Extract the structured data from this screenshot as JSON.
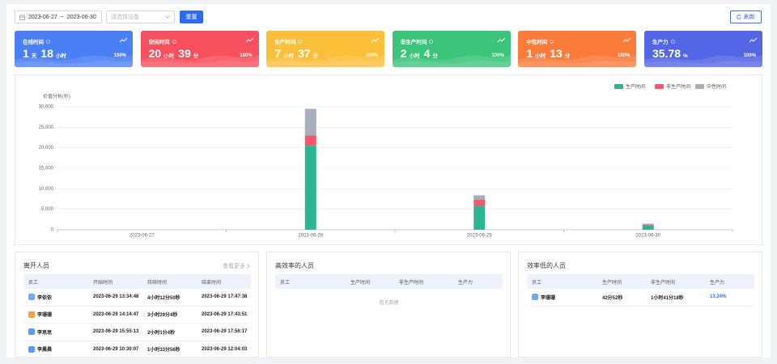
{
  "toolbar": {
    "date_start": "2023-06-27",
    "date_sep": "~",
    "date_end": "2023-06-30",
    "device_placeholder": "请选择设备",
    "reset": "重置",
    "refresh": "刷新"
  },
  "cards": [
    {
      "title": "在线时间",
      "color": "#4b7ff6",
      "parts": [
        {
          "value": 1,
          "unit": "天"
        },
        {
          "value": 18,
          "unit": "小时"
        }
      ],
      "percent": "100%"
    },
    {
      "title": "空闲时间",
      "color": "#f6505e",
      "parts": [
        {
          "value": 20,
          "unit": "小时"
        },
        {
          "value": 39,
          "unit": "分"
        }
      ],
      "percent": "100%"
    },
    {
      "title": "生产时间",
      "color": "#fcbf3a",
      "parts": [
        {
          "value": 7,
          "unit": "小时"
        },
        {
          "value": 37,
          "unit": "分"
        }
      ],
      "percent": "100%"
    },
    {
      "title": "非生产时间",
      "color": "#3cc47a",
      "parts": [
        {
          "value": 2,
          "unit": "小时"
        },
        {
          "value": 4,
          "unit": "分"
        }
      ],
      "percent": "100%"
    },
    {
      "title": "中性时间",
      "color": "#fb7b3b",
      "parts": [
        {
          "value": 1,
          "unit": "小时"
        },
        {
          "value": 13,
          "unit": "分"
        }
      ],
      "percent": "100%"
    },
    {
      "title": "生产力",
      "color": "#5466e6",
      "parts": [
        {
          "value": 35.78,
          "unit": "%"
        }
      ],
      "percent": "100%"
    }
  ],
  "chart_data": {
    "type": "bar",
    "stacked": true,
    "y_label": "价值分析(秒)",
    "categories": [
      "2023-06-27",
      "2023-06-28",
      "2023-06-29",
      "2023-06-30"
    ],
    "series": [
      {
        "name": "生产时间",
        "color": "#2bb591",
        "values": [
          0,
          20500,
          5800,
          1000
        ]
      },
      {
        "name": "非生产时间",
        "color": "#f25a6c",
        "values": [
          0,
          2500,
          1500,
          200
        ]
      },
      {
        "name": "中性时间",
        "color": "#a7afbd",
        "values": [
          0,
          6500,
          1100,
          300
        ]
      }
    ],
    "ylim": [
      0,
      30000
    ],
    "yticks": [
      0,
      {
        "value": 5000,
        "label": "5,000"
      },
      {
        "value": 10000,
        "label": "10,000"
      },
      {
        "value": 15000,
        "label": "15,000"
      },
      {
        "value": 20000,
        "label": "20,000"
      },
      {
        "value": 25000,
        "label": "25,000"
      },
      {
        "value": 30000,
        "label": "30,000"
      }
    ],
    "grid": true,
    "legend": "top-right"
  },
  "leave_panel": {
    "title": "离开人员",
    "more": "查看更多",
    "columns": [
      "员工",
      "开始时间",
      "持续时间",
      "结束时间"
    ],
    "rows": [
      [
        "李依依",
        "2023-06-29 13:34:48",
        "4小时12分50秒",
        "2023-06-29 17:47:38"
      ],
      [
        "李珊珊",
        "2023-06-29 14:14:47",
        "3小时29分4秒",
        "2023-06-29 17:43:51"
      ],
      [
        "李思思",
        "2023-06-29 15:55:13",
        "2小时1分4秒",
        "2023-06-29 17:56:17"
      ],
      [
        "李晨晨",
        "2023-06-29 10:30:07",
        "1小时33分56秒",
        "2023-06-29 12:04:03"
      ]
    ]
  },
  "high_panel": {
    "title": "高效率的人员",
    "columns": [
      "员工",
      "生产时间",
      "非生产时间",
      "生产力"
    ],
    "empty": "暂无数据"
  },
  "low_panel": {
    "title": "效率低的人员",
    "columns": [
      "员工",
      "生产时间",
      "非生产时间",
      "生产力"
    ],
    "rows": [
      [
        "李珊珊",
        "42分52秒",
        "1小时41分18秒",
        "13.24%"
      ]
    ]
  }
}
